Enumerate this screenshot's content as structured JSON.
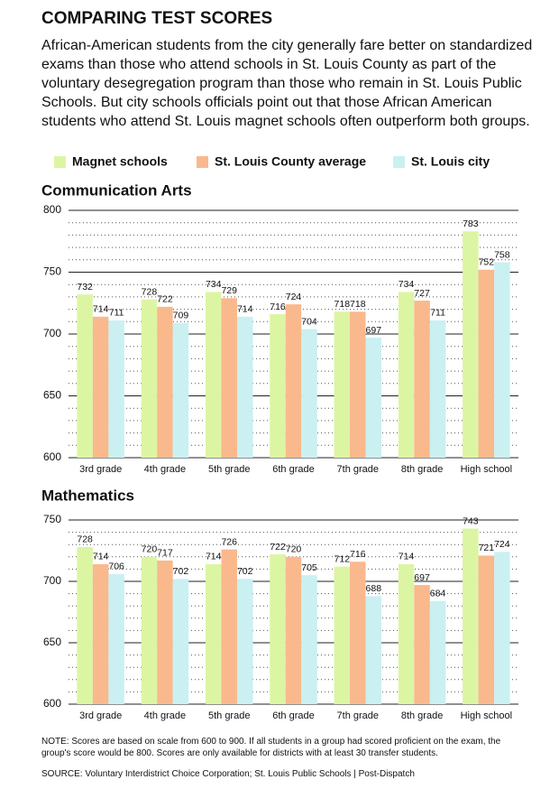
{
  "header": {
    "title": "COMPARING TEST SCORES",
    "subtitle": "African-American students from the city generally fare better on standardized exams than those who attend schools in St. Louis County as part of the voluntary desegregation program than those who remain in St. Louis Public Schools. But city schools officials point out that those African American students who attend St. Louis magnet schools often outperform both groups."
  },
  "chart_data": [
    {
      "type": "bar",
      "title": "Communication Arts",
      "categories": [
        "3rd grade",
        "4th grade",
        "5th grade",
        "6th grade",
        "7th grade",
        "8th grade",
        "High school"
      ],
      "series": [
        {
          "name": "Magnet schools",
          "color": "#dcf5a3",
          "values": [
            732,
            728,
            734,
            716,
            718,
            734,
            783
          ]
        },
        {
          "name": "St. Louis County average",
          "color": "#f9b98c",
          "values": [
            714,
            722,
            729,
            724,
            718,
            727,
            752
          ]
        },
        {
          "name": "St. Louis city",
          "color": "#caf0f2",
          "values": [
            711,
            709,
            714,
            704,
            697,
            711,
            758
          ]
        }
      ],
      "ylim": [
        600,
        800
      ],
      "yticks": [
        600,
        650,
        700,
        750,
        800
      ],
      "minor_yticks": [
        610,
        620,
        630,
        640,
        660,
        670,
        680,
        690,
        710,
        720,
        730,
        740,
        760,
        770,
        780,
        790
      ],
      "grid": true
    },
    {
      "type": "bar",
      "title": "Mathematics",
      "categories": [
        "3rd grade",
        "4th grade",
        "5th grade",
        "6th grade",
        "7th grade",
        "8th grade",
        "High school"
      ],
      "series": [
        {
          "name": "Magnet schools",
          "color": "#dcf5a3",
          "values": [
            728,
            720,
            714,
            722,
            712,
            714,
            743
          ]
        },
        {
          "name": "St. Louis County average",
          "color": "#f9b98c",
          "values": [
            714,
            717,
            726,
            720,
            716,
            697,
            721
          ]
        },
        {
          "name": "St. Louis city",
          "color": "#caf0f2",
          "values": [
            706,
            702,
            702,
            705,
            688,
            684,
            724
          ]
        }
      ],
      "ylim": [
        600,
        750
      ],
      "yticks": [
        600,
        650,
        700,
        750
      ],
      "minor_yticks": [
        610,
        620,
        630,
        640,
        660,
        670,
        680,
        690,
        710,
        720,
        730,
        740
      ],
      "grid": true
    }
  ],
  "footer": {
    "note": "NOTE: Scores are based on scale from 600 to 900. If all students in a group had scored proficient on the exam, the group's score would be 800. Scores are only available for districts with at least 30 transfer students.",
    "source": "SOURCE: Voluntary Interdistrict Choice Corporation; St. Louis Public Schools  |  Post-Dispatch"
  }
}
